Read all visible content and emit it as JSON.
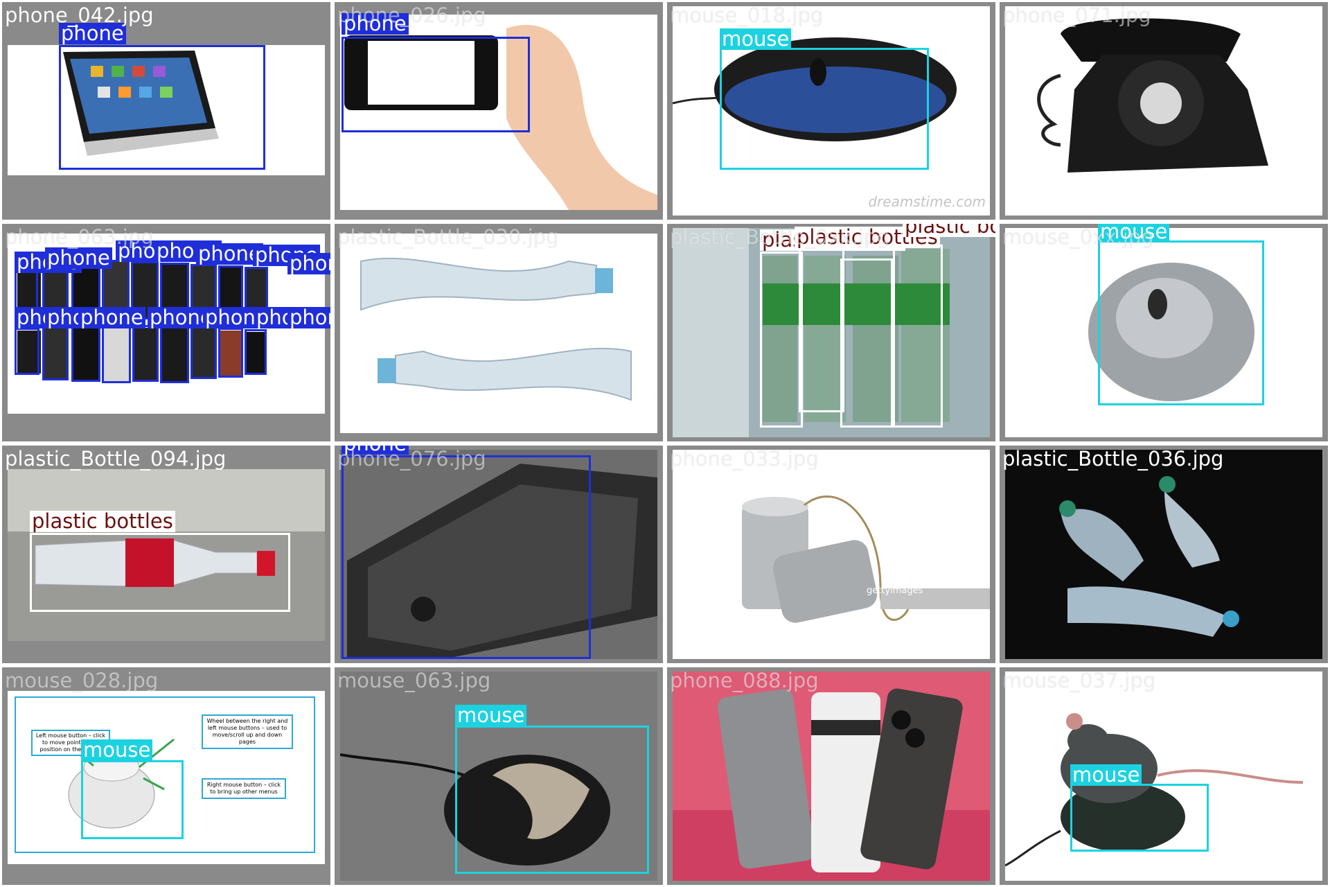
{
  "class_colors": {
    "phone": "#1f2ed8",
    "mouse": "#1cd2e0",
    "plastic bottles": "#6b1010"
  },
  "tiles": [
    {
      "file": "phone_042.jpg",
      "labels": [
        "phone"
      ]
    },
    {
      "file": "phone_026.jpg",
      "labels": [
        "phone"
      ]
    },
    {
      "file": "mouse_018.jpg",
      "labels": [
        "mouse"
      ],
      "watermark": "dreamstime.com"
    },
    {
      "file": "phone_071.jpg",
      "labels": []
    },
    {
      "file": "phone_063.jpg",
      "labels": [
        "phone",
        "phone",
        "phone",
        "phone",
        "phone",
        "phone",
        "phone",
        "phone",
        "phone",
        "phone",
        "phone",
        "phone",
        "phone",
        "phone",
        "phone",
        "phone",
        "phone",
        "phone"
      ]
    },
    {
      "file": "plastic_Bottle_030.jpg",
      "labels": []
    },
    {
      "file": "plastic_Bottle_0xx.jpg",
      "labels": [
        "plastic bottles",
        "plastic bottles",
        "plastic bottles",
        "plastic bottles"
      ]
    },
    {
      "file": "mouse_0xx.jpg",
      "labels": [
        "mouse"
      ]
    },
    {
      "file": "plastic_Bottle_094.jpg",
      "labels": [
        "plastic bottles"
      ]
    },
    {
      "file": "phone_076.jpg",
      "labels": [
        "phone"
      ]
    },
    {
      "file": "phone_033.jpg",
      "labels": [],
      "watermark": "gettyimages"
    },
    {
      "file": "plastic_Bottle_036.jpg",
      "labels": []
    },
    {
      "file": "mouse_028.jpg",
      "labels": [
        "mouse"
      ],
      "callouts": {
        "left": "Left mouse button – click to move pointer to a position on the screen",
        "wheel": "Wheel between the right and left mouse buttons – used to move/scroll up and down pages",
        "right": "Right mouse button – click to bring up other menus"
      }
    },
    {
      "file": "mouse_063.jpg",
      "labels": [
        "mouse"
      ]
    },
    {
      "file": "phone_088.jpg",
      "labels": []
    },
    {
      "file": "mouse_037.jpg",
      "labels": [
        "mouse"
      ]
    }
  ]
}
